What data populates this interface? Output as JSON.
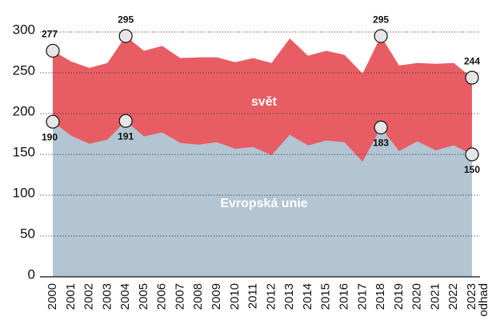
{
  "chart_data": {
    "type": "area",
    "categories": [
      "2000",
      "2001",
      "2002",
      "2003",
      "2004",
      "2005",
      "2006",
      "2007",
      "2008",
      "2009",
      "2010",
      "2011",
      "2012",
      "2013",
      "2014",
      "2015",
      "2016",
      "2017",
      "2018",
      "2019",
      "2020",
      "2021",
      "2022",
      "2023"
    ],
    "last_note": "odhad",
    "series": [
      {
        "name": "svět",
        "color": "#e85d63",
        "values": [
          277,
          264,
          256,
          262,
          295,
          277,
          283,
          268,
          269,
          269,
          263,
          268,
          262,
          292,
          271,
          277,
          272,
          249,
          295,
          259,
          262,
          261,
          262,
          244
        ]
      },
      {
        "name": "Evropská unie",
        "color": "#b3c4d3",
        "values": [
          190,
          173,
          163,
          168,
          191,
          172,
          177,
          164,
          162,
          165,
          157,
          159,
          149,
          174,
          161,
          167,
          165,
          141,
          183,
          154,
          166,
          155,
          161,
          150
        ]
      }
    ],
    "labeled_indices": [
      0,
      4,
      18,
      23
    ],
    "ylim": [
      0,
      300
    ],
    "yticks": [
      0,
      50,
      100,
      150,
      200,
      250,
      300
    ],
    "grid": true
  }
}
